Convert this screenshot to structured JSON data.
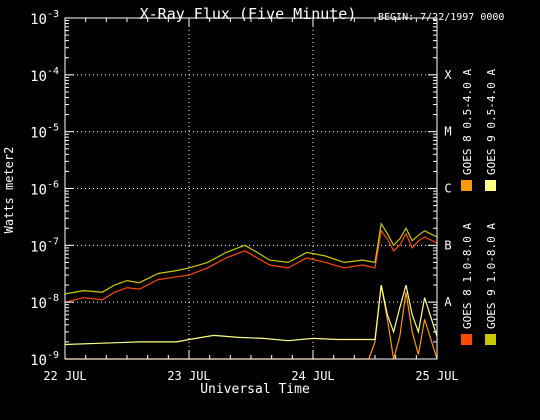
{
  "chart_data": {
    "type": "line",
    "title": "X-Ray Flux (Five Minute)",
    "begin_label": "BEGIN: 7/22/1997 0000",
    "xlabel": "Universal Time",
    "ylabel": "Watts meter2",
    "x_tick_labels": [
      "22 JUL",
      "23 JUL",
      "24 JUL",
      "25 JUL"
    ],
    "x_range_days": [
      0,
      3
    ],
    "y_scale": "log",
    "y_range": [
      1e-09,
      0.001
    ],
    "y_tick_exponents": [
      -9,
      -8,
      -7,
      -6,
      -5,
      -4,
      -3
    ],
    "flare_class_labels": [
      "A",
      "B",
      "C",
      "M",
      "X"
    ],
    "flare_class_levels": [
      1e-08,
      1e-07,
      1e-06,
      1e-05,
      0.0001
    ],
    "grid": "dotted",
    "legend_placement": "right (vertical text)",
    "series": [
      {
        "name": "GOES 8 1.0-8.0 A",
        "color": "#ff4a00",
        "x": [
          0.0,
          0.15,
          0.3,
          0.4,
          0.5,
          0.6,
          0.75,
          0.9,
          1.0,
          1.15,
          1.3,
          1.45,
          1.55,
          1.65,
          1.8,
          1.95,
          2.1,
          2.25,
          2.4,
          2.5,
          2.55,
          2.6,
          2.65,
          2.7,
          2.75,
          2.8,
          2.85,
          2.9,
          3.0
        ],
        "values": [
          1e-08,
          1.2e-08,
          1.1e-08,
          1.5e-08,
          1.8e-08,
          1.7e-08,
          2.5e-08,
          2.8e-08,
          3e-08,
          4e-08,
          6e-08,
          8e-08,
          6e-08,
          4.5e-08,
          4e-08,
          6e-08,
          5e-08,
          4e-08,
          4.5e-08,
          4e-08,
          1.8e-07,
          1.3e-07,
          8e-08,
          1e-07,
          1.6e-07,
          9e-08,
          1.2e-07,
          1.4e-07,
          1.1e-07
        ]
      },
      {
        "name": "GOES 8 0.5-4.0 A",
        "color": "#ff9a00",
        "x": [
          0.0,
          1.0,
          1.5,
          2.0,
          2.45,
          2.5,
          2.55,
          2.6,
          2.65,
          2.7,
          2.75,
          2.8,
          2.85,
          2.9,
          3.0
        ],
        "values": [
          1e-09,
          1e-09,
          1e-09,
          1e-09,
          1e-09,
          2e-09,
          2e-08,
          5e-09,
          1e-09,
          2.5e-09,
          1.5e-08,
          3e-09,
          1.2e-09,
          5e-09,
          1e-09
        ]
      },
      {
        "name": "GOES 9 0.5-4.0 A",
        "color": "#ffff88",
        "x": [
          0.0,
          0.3,
          0.6,
          0.9,
          1.0,
          1.2,
          1.4,
          1.6,
          1.8,
          2.0,
          2.2,
          2.4,
          2.5,
          2.55,
          2.6,
          2.65,
          2.7,
          2.75,
          2.8,
          2.85,
          2.9,
          3.0
        ],
        "values": [
          1.8e-09,
          1.9e-09,
          2e-09,
          2e-09,
          2.2e-09,
          2.6e-09,
          2.4e-09,
          2.3e-09,
          2.1e-09,
          2.3e-09,
          2.2e-09,
          2.2e-09,
          2.2e-09,
          2e-08,
          6e-09,
          3e-09,
          8e-09,
          2e-08,
          6e-09,
          3e-09,
          1.2e-08,
          2.5e-09
        ]
      },
      {
        "name": "GOES 9 1.0-8.0 A",
        "color": "#c8c800",
        "x": [
          0.0,
          0.15,
          0.3,
          0.4,
          0.5,
          0.6,
          0.75,
          0.9,
          1.0,
          1.15,
          1.3,
          1.45,
          1.55,
          1.65,
          1.8,
          1.95,
          2.1,
          2.25,
          2.4,
          2.5,
          2.55,
          2.6,
          2.65,
          2.7,
          2.75,
          2.8,
          2.85,
          2.9,
          3.0
        ],
        "values": [
          1.4e-08,
          1.6e-08,
          1.5e-08,
          2e-08,
          2.4e-08,
          2.2e-08,
          3.2e-08,
          3.6e-08,
          4e-08,
          5e-08,
          7.5e-08,
          1e-07,
          7.5e-08,
          5.5e-08,
          5e-08,
          7.5e-08,
          6.5e-08,
          5e-08,
          5.5e-08,
          5e-08,
          2.4e-07,
          1.6e-07,
          1e-07,
          1.3e-07,
          2e-07,
          1.2e-07,
          1.5e-07,
          1.8e-07,
          1.4e-07
        ]
      }
    ]
  }
}
